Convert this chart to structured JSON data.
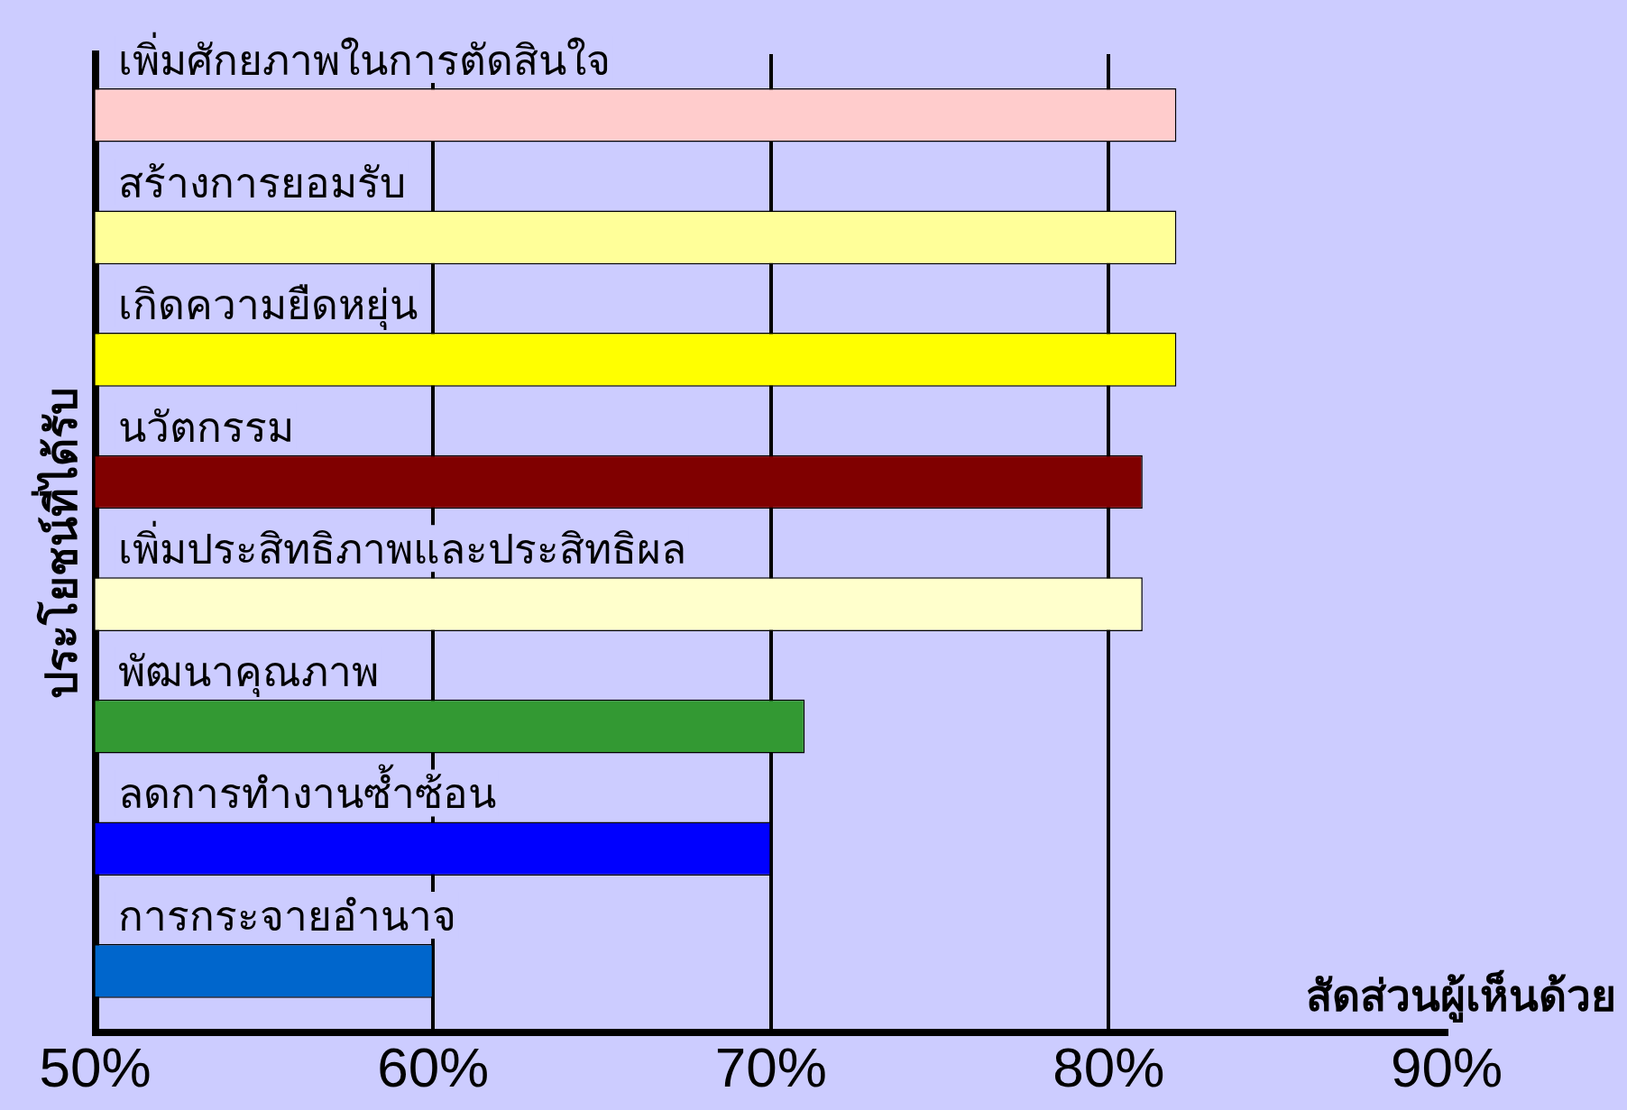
{
  "chart_data": {
    "type": "bar",
    "orientation": "horizontal",
    "xlabel": "สัดส่วนผู้เห็นด้วย",
    "ylabel": "ประโยชน์ที่ได้รับ",
    "categories": [
      "เพิ่มศักยภาพในการตัดสินใจ",
      "สร้างการยอมรับ",
      "เกิดความยืดหยุ่น",
      "นวัตกรรม",
      "เพิ่มประสิทธิภาพและประสิทธิผล",
      "พัฒนาคุณภาพ",
      "ลดการทำงานซ้ำซ้อน",
      "การกระจายอำนาจ"
    ],
    "values": [
      82,
      82,
      82,
      81,
      81,
      71,
      70,
      60
    ],
    "colors": [
      "#ffcccc",
      "#ffff99",
      "#ffff00",
      "#800000",
      "#ffffcc",
      "#339933",
      "#0000ff",
      "#0066cc"
    ],
    "xlim": [
      50,
      90
    ],
    "xticks": [
      {
        "value": 50,
        "label": "50%"
      },
      {
        "value": 60,
        "label": "60%"
      },
      {
        "value": 70,
        "label": "70%"
      },
      {
        "value": 80,
        "label": "80%"
      },
      {
        "value": 90,
        "label": "90%"
      }
    ],
    "grid": "x",
    "legend": false
  }
}
